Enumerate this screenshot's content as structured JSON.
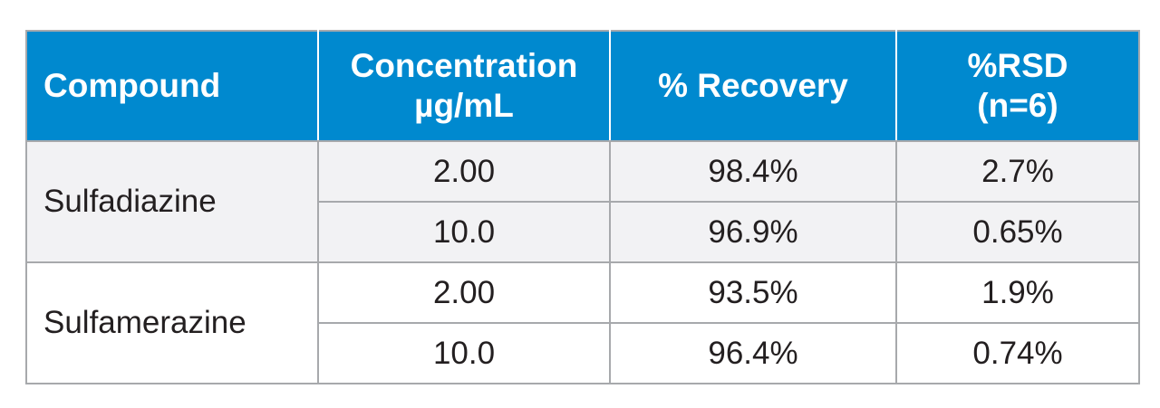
{
  "colors": {
    "header_bg": "#0089cf",
    "row_group_1_bg": "#f2f2f4",
    "row_group_2_bg": "#ffffff",
    "border": "#a7a9ac"
  },
  "table": {
    "headers": [
      [
        "Compound"
      ],
      [
        "Concentration",
        "µg/mL"
      ],
      [
        "% Recovery"
      ],
      [
        "%RSD",
        "(n=6)"
      ]
    ],
    "groups": [
      {
        "compound": "Sulfadiazine",
        "rows": [
          {
            "concentration": "2.00",
            "recovery": "98.4%",
            "rsd": "2.7%"
          },
          {
            "concentration": "10.0",
            "recovery": "96.9%",
            "rsd": "0.65%"
          }
        ]
      },
      {
        "compound": "Sulfamerazine",
        "rows": [
          {
            "concentration": "2.00",
            "recovery": "93.5%",
            "rsd": "1.9%"
          },
          {
            "concentration": "10.0",
            "recovery": "96.4%",
            "rsd": "0.74%"
          }
        ]
      }
    ]
  }
}
